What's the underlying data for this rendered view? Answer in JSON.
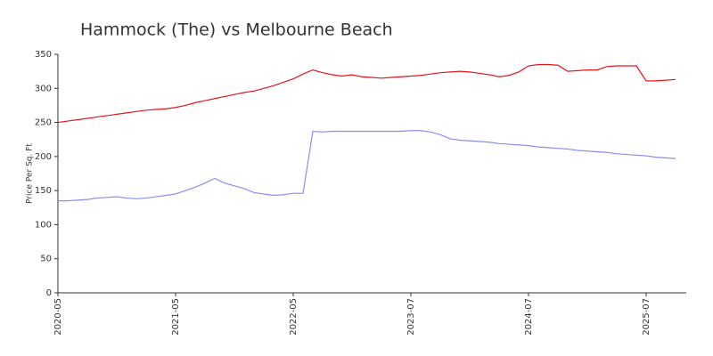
{
  "chart_data": {
    "type": "line",
    "title": "Hammock (The) vs Melbourne Beach",
    "y_label": "Price Per Sq. Ft",
    "categories": [
      "2020-05",
      null,
      null,
      null,
      null,
      null,
      null,
      null,
      null,
      null,
      null,
      null,
      "2021-05",
      null,
      null,
      null,
      null,
      null,
      null,
      null,
      null,
      null,
      null,
      null,
      "2022-05",
      null,
      null,
      null,
      null,
      null,
      null,
      null,
      null,
      null,
      null,
      null,
      "2023-07",
      null,
      null,
      null,
      null,
      null,
      null,
      null,
      null,
      null,
      null,
      null,
      "2024-07",
      null,
      null,
      null,
      null,
      null,
      null,
      null,
      null,
      null,
      null,
      null,
      "2025-07",
      null,
      null,
      null
    ],
    "series": [
      {
        "color": "#e8141c",
        "values": [
          250,
          252,
          254,
          256,
          258,
          260,
          262,
          264,
          266,
          268,
          269,
          270,
          272,
          275,
          279,
          282,
          285,
          288,
          291,
          294,
          296,
          300,
          304,
          309,
          314,
          321,
          327,
          323,
          320,
          318,
          320,
          317,
          316,
          315,
          316,
          317,
          318,
          319,
          321,
          323,
          324,
          325,
          324,
          322,
          320,
          317,
          319,
          324,
          333,
          335,
          335,
          334,
          325,
          326,
          327,
          327,
          332,
          333,
          333,
          333,
          311,
          311,
          312,
          313
        ]
      },
      {
        "color": "#8c8cf0",
        "values": [
          135,
          135,
          136,
          137,
          139,
          140,
          141,
          139,
          138,
          139,
          141,
          143,
          145,
          150,
          155,
          161,
          168,
          161,
          157,
          153,
          147,
          145,
          143,
          144,
          146,
          146,
          237,
          236,
          237,
          237,
          237,
          237,
          237,
          237,
          237,
          237,
          238,
          238,
          236,
          232,
          226,
          224,
          223,
          222,
          221,
          219,
          218,
          217,
          216,
          214,
          213,
          212,
          211,
          209,
          208,
          207,
          206,
          204,
          203,
          202,
          201,
          199,
          198,
          197
        ]
      }
    ],
    "ylim": [
      0,
      350
    ],
    "yticks": [
      0,
      50,
      100,
      150,
      200,
      250,
      300,
      350
    ]
  }
}
